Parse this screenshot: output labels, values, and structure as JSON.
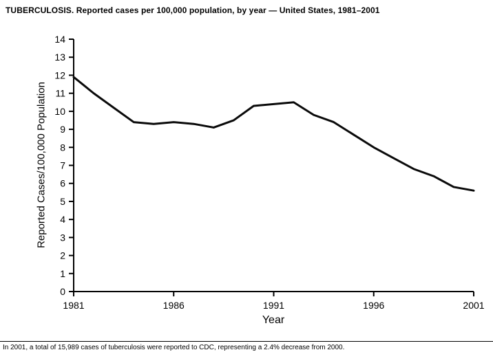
{
  "header": {
    "title": "TUBERCULOSIS. Reported cases per 100,000 population, by year — United States, 1981–2001"
  },
  "footer": {
    "note": "In 2001, a total of 15,989 cases of tuberculosis were reported to CDC, representing a 2.4% decrease from 2000."
  },
  "chart_data": {
    "type": "line",
    "title": "TUBERCULOSIS. Reported cases per 100,000 population, by year — United States, 1981–2001",
    "xlabel": "Year",
    "ylabel": "Reported Cases/100,000 Population",
    "x": [
      1981,
      1982,
      1983,
      1984,
      1985,
      1986,
      1987,
      1988,
      1989,
      1990,
      1991,
      1992,
      1993,
      1994,
      1995,
      1996,
      1997,
      1998,
      1999,
      2000,
      2001
    ],
    "values": [
      11.9,
      11.0,
      10.2,
      9.4,
      9.3,
      9.4,
      9.3,
      9.1,
      9.5,
      10.3,
      10.4,
      10.5,
      9.8,
      9.4,
      8.7,
      8.0,
      7.4,
      6.8,
      6.4,
      5.8,
      5.6
    ],
    "ylim": [
      0,
      14
    ],
    "y_tick_step": 1,
    "x_tick_labels": [
      1981,
      1986,
      1991,
      1996,
      2001
    ],
    "grid": false,
    "legend": "none",
    "line_color": "#0a0a0a",
    "axis_color": "#000000",
    "line_width": 3
  }
}
